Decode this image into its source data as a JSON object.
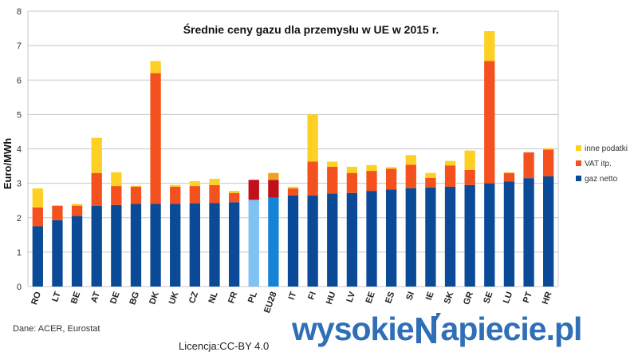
{
  "chart_data": {
    "type": "bar",
    "stacked": true,
    "title": "Średnie ceny gazu dla przemysłu w UE w 2015 r.",
    "ylabel": "Euro/MWh",
    "xlabel": "",
    "ylim": [
      0,
      8
    ],
    "yticks": [
      "0",
      "1",
      "2",
      "3",
      "4",
      "5",
      "6",
      "7",
      "8"
    ],
    "grid": true,
    "legend_position": "right",
    "categories": [
      "RO",
      "LT",
      "BE",
      "AT",
      "DE",
      "BG",
      "DK",
      "UK",
      "CZ",
      "NL",
      "FR",
      "PL",
      "EU28",
      "IT",
      "FI",
      "HU",
      "LV",
      "EE",
      "ES",
      "SI",
      "IE",
      "SK",
      "GR",
      "SE",
      "LU",
      "PT",
      "HR"
    ],
    "series": [
      {
        "name": "gaz netto",
        "color": "#0a4a97",
        "values": [
          1.75,
          1.93,
          2.05,
          2.35,
          2.37,
          2.4,
          2.4,
          2.4,
          2.42,
          2.43,
          2.45,
          2.52,
          2.58,
          2.65,
          2.65,
          2.7,
          2.72,
          2.78,
          2.82,
          2.86,
          2.88,
          2.9,
          2.95,
          3.0,
          3.05,
          3.15,
          3.2
        ]
      },
      {
        "name": "VAT itp.",
        "color": "#f4511e",
        "values": [
          0.55,
          0.42,
          0.3,
          0.95,
          0.55,
          0.5,
          3.8,
          0.5,
          0.5,
          0.52,
          0.27,
          0.58,
          0.52,
          0.2,
          0.98,
          0.78,
          0.58,
          0.58,
          0.6,
          0.68,
          0.28,
          0.62,
          0.44,
          3.55,
          0.25,
          0.75,
          0.78
        ]
      },
      {
        "name": "inne podatki",
        "color": "#fdd023",
        "values": [
          0.55,
          0.0,
          0.05,
          1.02,
          0.4,
          0.03,
          0.35,
          0.05,
          0.14,
          0.18,
          0.06,
          0.0,
          0.2,
          0.05,
          1.37,
          0.15,
          0.18,
          0.17,
          0.05,
          0.28,
          0.14,
          0.13,
          0.56,
          0.87,
          0.02,
          0.0,
          0.04
        ]
      }
    ],
    "highlight_colors": {
      "PL": {
        "gaz netto": "#7fc2f4",
        "VAT itp.": "#c0101b"
      },
      "EU28": {
        "gaz netto": "#1683d6",
        "VAT itp.": "#c0101b",
        "inne podatki": "#f0a020"
      }
    }
  },
  "source_note": "Dane: ACER, Eurostat",
  "license_note": "Licencja:CC-BY 4.0",
  "brand": {
    "part1": "wysokie",
    "part2": "apiecie.pl",
    "color": "#2f6fb8"
  }
}
